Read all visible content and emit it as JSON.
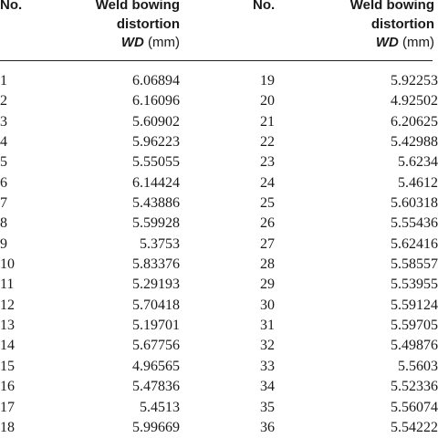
{
  "header": {
    "no_label": "No.",
    "wd_line1": "Weld bowing",
    "wd_line2": "distortion",
    "wd_symbol": "WD",
    "wd_unit": "(mm)"
  },
  "rows_left": [
    {
      "no": "1",
      "wd": "6.06894"
    },
    {
      "no": "2",
      "wd": "6.16096"
    },
    {
      "no": "3",
      "wd": "5.60902"
    },
    {
      "no": "4",
      "wd": "5.96223"
    },
    {
      "no": "5",
      "wd": "5.55055"
    },
    {
      "no": "6",
      "wd": "6.14424"
    },
    {
      "no": "7",
      "wd": "5.43886"
    },
    {
      "no": "8",
      "wd": "5.59928"
    },
    {
      "no": "9",
      "wd": "5.3753"
    },
    {
      "no": "10",
      "wd": "5.83376"
    },
    {
      "no": "11",
      "wd": "5.29193"
    },
    {
      "no": "12",
      "wd": "5.70418"
    },
    {
      "no": "13",
      "wd": "5.19701"
    },
    {
      "no": "14",
      "wd": "5.67756"
    },
    {
      "no": "15",
      "wd": "4.96565"
    },
    {
      "no": "16",
      "wd": "5.47836"
    },
    {
      "no": "17",
      "wd": "5.4513"
    },
    {
      "no": "18",
      "wd": "5.99669"
    }
  ],
  "rows_right": [
    {
      "no": "19",
      "wd": "5.92253"
    },
    {
      "no": "20",
      "wd": "4.92502"
    },
    {
      "no": "21",
      "wd": "6.20625"
    },
    {
      "no": "22",
      "wd": "5.42988"
    },
    {
      "no": "23",
      "wd": "5.6234"
    },
    {
      "no": "24",
      "wd": "5.4612"
    },
    {
      "no": "25",
      "wd": "5.60318"
    },
    {
      "no": "26",
      "wd": "5.55436"
    },
    {
      "no": "27",
      "wd": "5.62416"
    },
    {
      "no": "28",
      "wd": "5.58557"
    },
    {
      "no": "29",
      "wd": "5.53955"
    },
    {
      "no": "30",
      "wd": "5.59124"
    },
    {
      "no": "31",
      "wd": "5.59705"
    },
    {
      "no": "32",
      "wd": "5.49876"
    },
    {
      "no": "33",
      "wd": "5.5603"
    },
    {
      "no": "34",
      "wd": "5.52336"
    },
    {
      "no": "35",
      "wd": "5.56074"
    },
    {
      "no": "36",
      "wd": "5.54222"
    }
  ]
}
